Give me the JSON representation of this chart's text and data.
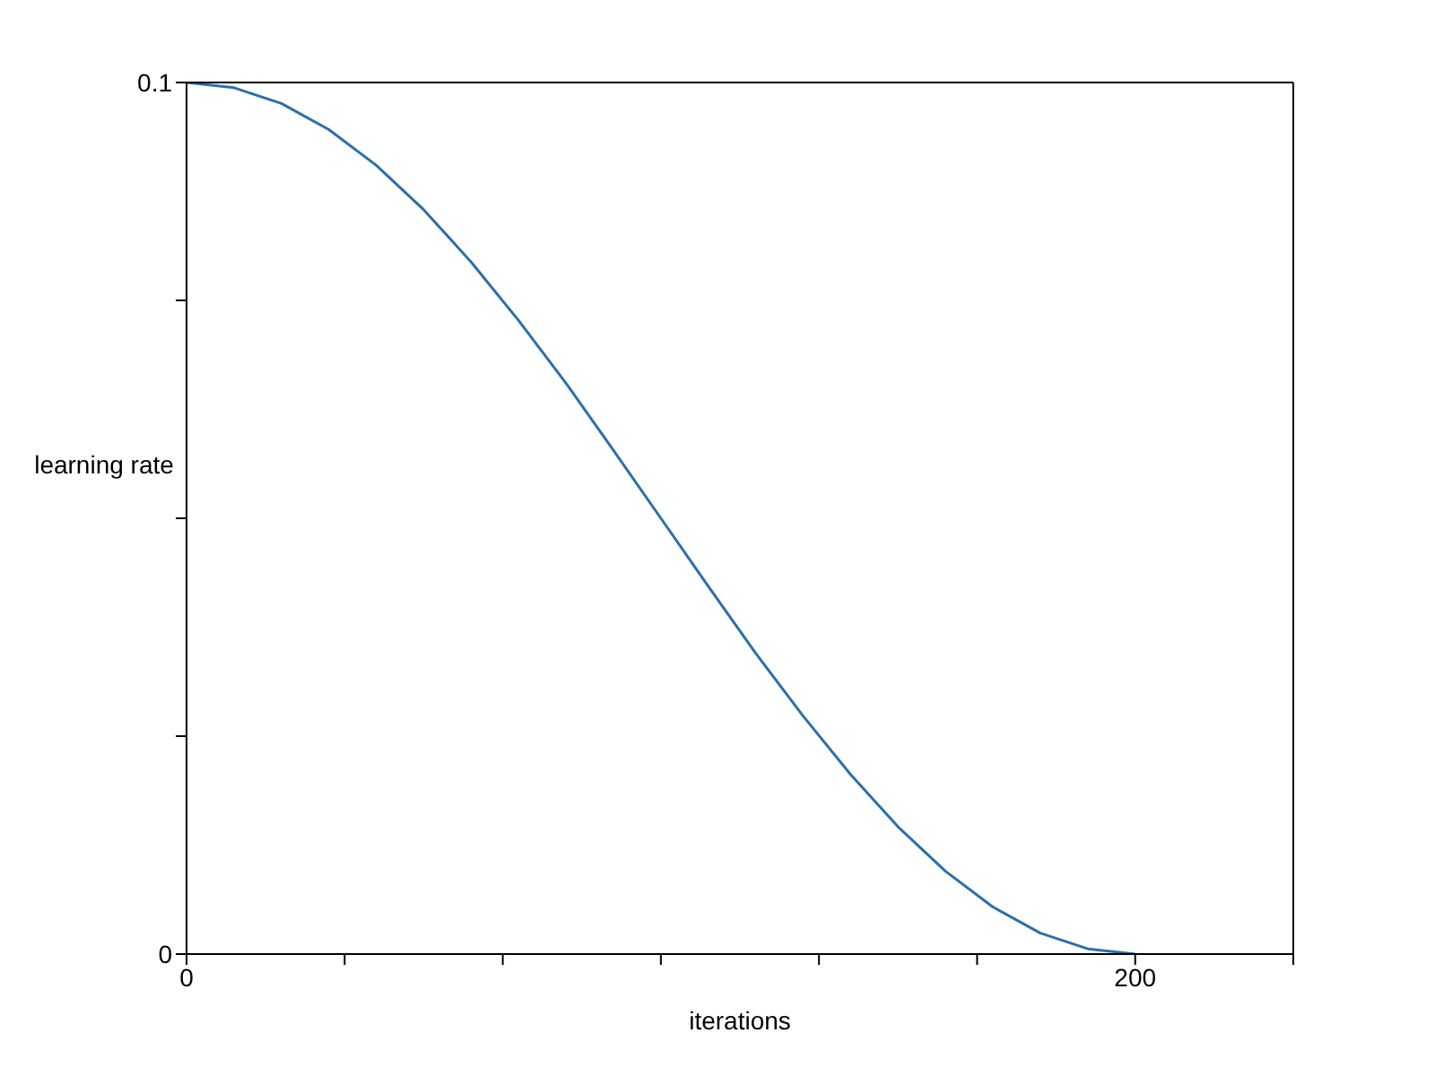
{
  "chart_data": {
    "type": "line",
    "xlabel": "iterations",
    "ylabel": "learning rate",
    "x": [
      0,
      10,
      20,
      30,
      40,
      50,
      60,
      70,
      80,
      90,
      100,
      110,
      120,
      130,
      140,
      150,
      160,
      170,
      180,
      190,
      200
    ],
    "series": [
      {
        "color": "#2a6fad",
        "values": [
          0.1,
          0.0994,
          0.0976,
          0.0946,
          0.0905,
          0.0854,
          0.0794,
          0.0727,
          0.0655,
          0.0578,
          0.05,
          0.0422,
          0.0345,
          0.0273,
          0.0206,
          0.0146,
          0.0095,
          0.0054,
          0.0024,
          0.0006,
          0
        ]
      }
    ],
    "xlim": [
      0,
      233.33
    ],
    "xticks": [
      0,
      {
        "value": 33.33,
        "label": null
      },
      {
        "value": 66.67,
        "label": null
      },
      {
        "value": 100,
        "label": null
      },
      {
        "value": 133.33,
        "label": null
      },
      {
        "value": 166.67,
        "label": null
      },
      200,
      {
        "value": 233.33,
        "label": null
      }
    ],
    "ylim": [
      0,
      0.1
    ],
    "yticks": [
      0,
      {
        "value": 0.025,
        "label": null
      },
      {
        "value": 0.05,
        "label": null
      },
      {
        "value": 0.075,
        "label": null
      },
      0.1
    ],
    "grid": false,
    "legend": false,
    "marker": "none",
    "line_style": "solid"
  }
}
